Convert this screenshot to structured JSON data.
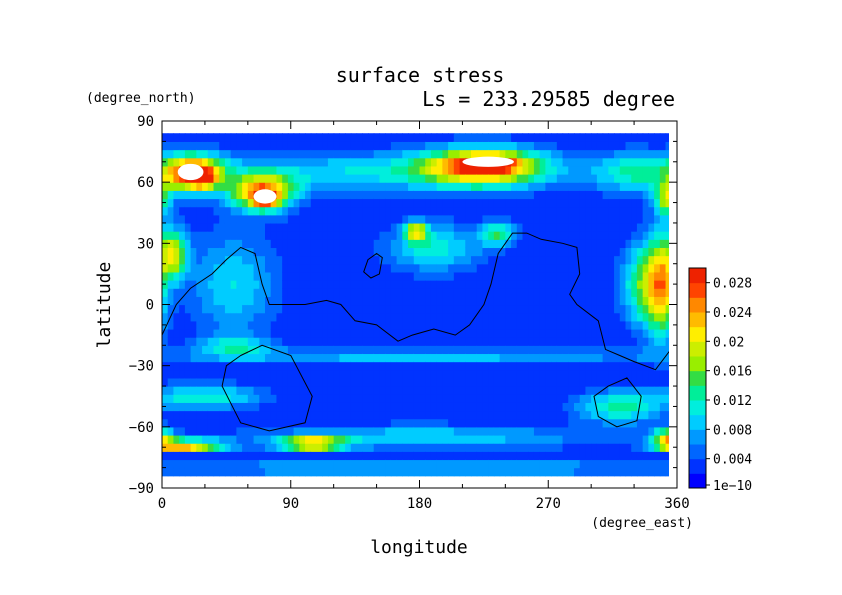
{
  "chart_data": {
    "type": "heatmap",
    "title": "surface stress",
    "subtitle": "Ls = 233.29585 degree",
    "xlabel": "longitude",
    "ylabel": "latitude",
    "x_unit": "(degree_east)",
    "y_unit": "(degree_north)",
    "xlim": [
      0,
      360
    ],
    "ylim": [
      -90,
      90
    ],
    "x_ticks": [
      "0",
      "90",
      "180",
      "270",
      "360"
    ],
    "y_ticks": [
      "90",
      "60",
      "30",
      "0",
      "−30",
      "−60",
      "−90"
    ],
    "data_lat_range": [
      -84,
      84
    ],
    "colorbar": {
      "range": [
        0,
        0.03
      ],
      "tick_values": [
        1e-10,
        0.004,
        0.008,
        0.012,
        0.016,
        0.02,
        0.024,
        0.028
      ],
      "tick_labels": [
        "1e−10",
        "0.004",
        "0.008",
        "0.012",
        "0.016",
        "0.02",
        "0.024",
        "0.028"
      ],
      "colors": [
        "#0000ff",
        "#0033ff",
        "#0066ff",
        "#0099ff",
        "#00ccff",
        "#00eedd",
        "#00ee99",
        "#33dd44",
        "#99ee00",
        "#ccee00",
        "#ffee00",
        "#ffbb00",
        "#ff8800",
        "#ff4400",
        "#ee2200"
      ]
    },
    "background_value": 0.002,
    "features": [
      {
        "lon": 20,
        "lat": 65,
        "w_lon": 22,
        "w_lat": 9,
        "value": 0.024
      },
      {
        "lon": 28,
        "lat": 62,
        "w_lon": 10,
        "w_lat": 5,
        "value": 0.012
      },
      {
        "lon": 70,
        "lat": 55,
        "w_lon": 22,
        "w_lat": 9,
        "value": 0.022
      },
      {
        "lon": 72,
        "lat": 52,
        "w_lon": 8,
        "w_lat": 4,
        "value": 0.012
      },
      {
        "lon": 225,
        "lat": 68,
        "w_lon": 42,
        "w_lat": 9,
        "value": 0.024
      },
      {
        "lon": 228,
        "lat": 70,
        "w_lon": 16,
        "w_lat": 3,
        "value": 0.012
      },
      {
        "lon": 140,
        "lat": 65,
        "w_lon": 120,
        "w_lat": 10,
        "value": 0.008
      },
      {
        "lon": 330,
        "lat": 65,
        "w_lon": 30,
        "w_lat": 10,
        "value": 0.01
      },
      {
        "lon": 355,
        "lat": 52,
        "w_lon": 10,
        "w_lat": 8,
        "value": 0.016
      },
      {
        "lon": 8,
        "lat": 25,
        "w_lon": 10,
        "w_lat": 12,
        "value": 0.017
      },
      {
        "lon": 350,
        "lat": 10,
        "w_lon": 12,
        "w_lat": 25,
        "value": 0.02
      },
      {
        "lon": 335,
        "lat": 10,
        "w_lon": 15,
        "w_lat": 20,
        "value": 0.011
      },
      {
        "lon": 50,
        "lat": 10,
        "w_lon": 30,
        "w_lat": 25,
        "value": 0.008
      },
      {
        "lon": 190,
        "lat": 28,
        "w_lon": 35,
        "w_lat": 12,
        "value": 0.009
      },
      {
        "lon": 178,
        "lat": 36,
        "w_lon": 8,
        "w_lat": 5,
        "value": 0.016
      },
      {
        "lon": 235,
        "lat": 35,
        "w_lon": 12,
        "w_lat": 6,
        "value": 0.011
      },
      {
        "lon": 30,
        "lat": -45,
        "w_lon": 40,
        "w_lat": 6,
        "value": 0.01
      },
      {
        "lon": 320,
        "lat": -50,
        "w_lon": 30,
        "w_lat": 8,
        "value": 0.011
      },
      {
        "lon": 355,
        "lat": -65,
        "w_lon": 12,
        "w_lat": 5,
        "value": 0.018
      },
      {
        "lon": 15,
        "lat": -69,
        "w_lon": 28,
        "w_lat": 3,
        "value": 0.022
      },
      {
        "lon": 105,
        "lat": -68,
        "w_lon": 22,
        "w_lat": 3,
        "value": 0.022
      },
      {
        "lon": 180,
        "lat": -65,
        "w_lon": 120,
        "w_lat": 6,
        "value": 0.008
      },
      {
        "lon": 50,
        "lat": -20,
        "w_lon": 25,
        "w_lat": 5,
        "value": 0.008
      },
      {
        "lon": 180,
        "lat": -25,
        "w_lon": 180,
        "w_lat": 4,
        "value": 0.007
      },
      {
        "lon": 180,
        "lat": -80,
        "w_lon": 180,
        "w_lat": 3,
        "value": 0.009
      }
    ],
    "saturated_regions": [
      {
        "lon": 20,
        "lat": 65,
        "r_lon": 9,
        "r_lat": 4
      },
      {
        "lon": 72,
        "lat": 53,
        "r_lon": 8,
        "r_lat": 3.5
      },
      {
        "lon": 228,
        "lat": 70,
        "r_lon": 18,
        "r_lat": 2.5
      }
    ],
    "topography_contours": [
      {
        "name": "continent-contour",
        "closed": false,
        "points": [
          [
            0,
            -15
          ],
          [
            10,
            0
          ],
          [
            20,
            8
          ],
          [
            35,
            15
          ],
          [
            45,
            22
          ],
          [
            55,
            28
          ],
          [
            65,
            25
          ],
          [
            70,
            10
          ],
          [
            75,
            0
          ],
          [
            90,
            0
          ],
          [
            100,
            0
          ],
          [
            115,
            2
          ],
          [
            125,
            0
          ],
          [
            135,
            -8
          ],
          [
            150,
            -10
          ],
          [
            165,
            -18
          ],
          [
            175,
            -15
          ],
          [
            190,
            -12
          ],
          [
            205,
            -15
          ],
          [
            215,
            -10
          ],
          [
            225,
            0
          ],
          [
            230,
            10
          ],
          [
            235,
            25
          ],
          [
            245,
            35
          ],
          [
            255,
            35
          ],
          [
            265,
            32
          ],
          [
            280,
            30
          ],
          [
            290,
            28
          ],
          [
            292,
            15
          ],
          [
            285,
            5
          ],
          [
            290,
            0
          ],
          [
            305,
            -8
          ],
          [
            310,
            -22
          ],
          [
            320,
            -25
          ],
          [
            330,
            -28
          ],
          [
            345,
            -32
          ],
          [
            360,
            -18
          ]
        ]
      },
      {
        "name": "crater-contour-small",
        "closed": true,
        "points": [
          [
            144,
            22
          ],
          [
            150,
            25
          ],
          [
            154,
            23
          ],
          [
            152,
            15
          ],
          [
            146,
            13
          ],
          [
            141,
            16
          ]
        ]
      },
      {
        "name": "hellas-contour",
        "closed": true,
        "points": [
          [
            55,
            -25
          ],
          [
            70,
            -20
          ],
          [
            90,
            -25
          ],
          [
            105,
            -45
          ],
          [
            100,
            -58
          ],
          [
            75,
            -62
          ],
          [
            55,
            -58
          ],
          [
            42,
            -40
          ],
          [
            45,
            -30
          ]
        ]
      },
      {
        "name": "argyre-contour",
        "closed": true,
        "points": [
          [
            312,
            -40
          ],
          [
            325,
            -36
          ],
          [
            335,
            -45
          ],
          [
            332,
            -57
          ],
          [
            318,
            -60
          ],
          [
            305,
            -55
          ],
          [
            302,
            -45
          ]
        ]
      }
    ]
  }
}
